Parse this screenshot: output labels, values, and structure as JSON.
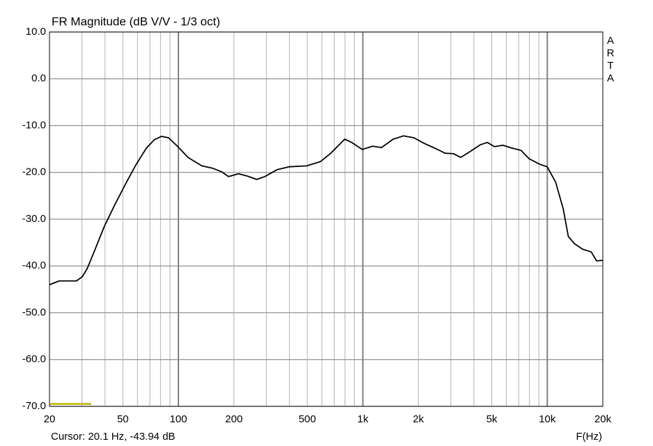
{
  "chart_data": {
    "type": "line",
    "title": "FR Magnitude (dB V/V - 1/3 oct)",
    "x_label": "F(Hz)",
    "cursor": "Cursor: 20.1 Hz, -43.94 dB",
    "watermark": "ARTA",
    "x_scale": "log",
    "grid": true,
    "color": "#000000",
    "x": [
      20,
      22.6,
      28,
      30.1,
      32,
      34.9,
      39.6,
      45.1,
      51.5,
      58.8,
      67.1,
      74.2,
      81,
      88.3,
      98.8,
      112.7,
      134,
      153,
      172,
      187,
      212,
      237,
      266,
      294,
      344,
      400,
      496,
      589,
      670,
      797,
      870,
      992,
      1130,
      1262,
      1460,
      1660,
      1891,
      2150,
      2510,
      2790,
      3100,
      3390,
      3800,
      4330,
      4730,
      5170,
      5740,
      6420,
      7200,
      7980,
      9140,
      9990,
      11100,
      12200,
      13000,
      14000,
      15500,
      17300,
      18500,
      20000
    ],
    "values": [
      -44.0,
      -43.2,
      -43.2,
      -42.3,
      -40.6,
      -37.0,
      -31.6,
      -27.0,
      -22.6,
      -18.4,
      -14.8,
      -13.0,
      -12.3,
      -12.6,
      -14.4,
      -16.8,
      -18.6,
      -19.1,
      -19.9,
      -20.9,
      -20.3,
      -20.8,
      -21.5,
      -20.9,
      -19.4,
      -18.8,
      -18.6,
      -17.7,
      -15.9,
      -12.9,
      -13.6,
      -15.1,
      -14.4,
      -14.7,
      -12.9,
      -12.2,
      -12.6,
      -13.8,
      -15.0,
      -15.9,
      -16.0,
      -16.8,
      -15.6,
      -14.1,
      -13.6,
      -14.5,
      -14.2,
      -14.8,
      -15.3,
      -17.1,
      -18.3,
      -18.8,
      -22.1,
      -27.8,
      -33.7,
      -35.2,
      -36.4,
      -37.0,
      -38.9,
      -38.8
    ],
    "xlim": [
      20,
      20000
    ],
    "ylim": [
      -70,
      10
    ],
    "xticks": [
      20,
      50,
      100,
      200,
      500,
      {
        "value": 1000,
        "label": "1k"
      },
      {
        "value": 2000,
        "label": "2k"
      },
      {
        "value": 5000,
        "label": "5k"
      },
      {
        "value": 10000,
        "label": "10k"
      },
      {
        "value": 20000,
        "label": "20k"
      }
    ],
    "xminor": [
      30,
      40,
      60,
      70,
      80,
      90,
      300,
      400,
      600,
      700,
      800,
      900,
      3000,
      4000,
      6000,
      7000,
      8000,
      9000
    ],
    "xmajor": [
      100,
      1000,
      10000
    ],
    "yticks": [
      {
        "value": 10,
        "label": "10.0"
      },
      {
        "value": 0,
        "label": "0.0"
      },
      {
        "value": -10,
        "label": "-10.0"
      },
      {
        "value": -20,
        "label": "-20.0"
      },
      {
        "value": -30,
        "label": "-30.0"
      },
      {
        "value": -40,
        "label": "-40.0"
      },
      {
        "value": -50,
        "label": "-50.0"
      },
      {
        "value": -60,
        "label": "-60.0"
      },
      {
        "value": -70,
        "label": "-70.0"
      }
    ]
  }
}
